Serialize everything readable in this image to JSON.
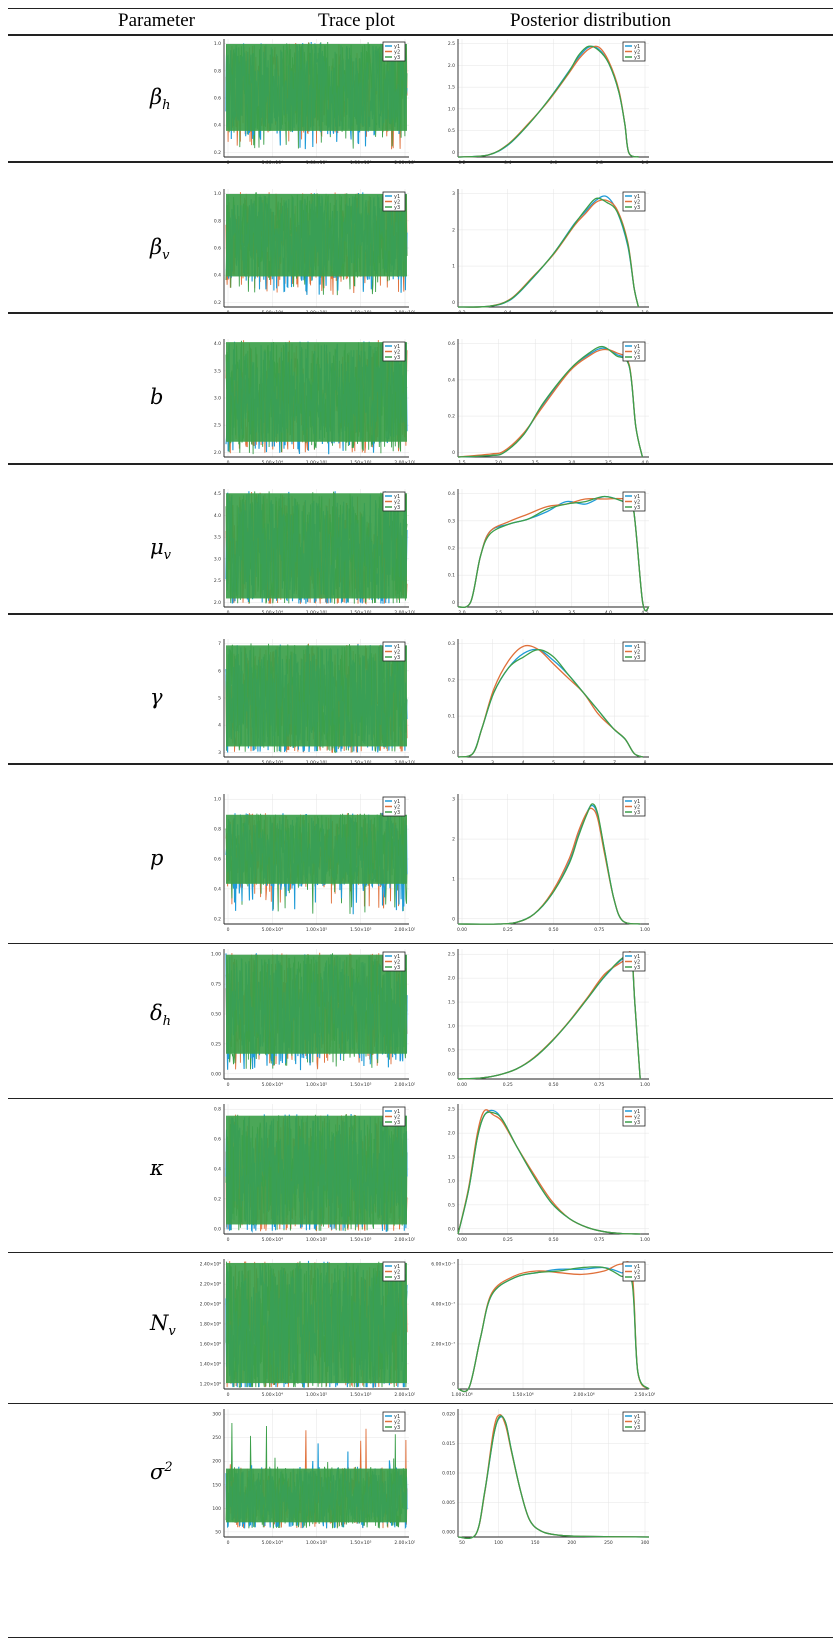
{
  "headers": {
    "parameter": "Parameter",
    "trace": "Trace plot",
    "posterior": "Posterior distribution"
  },
  "legend_labels": [
    "y1",
    "y2",
    "y3"
  ],
  "series_colors": [
    "#1f9bd7",
    "#e0703a",
    "#3c9f4a"
  ],
  "rows": [
    {
      "symbol": "β",
      "sub": "h",
      "sup": "",
      "trace": {
        "y_ticks": [
          "0.2",
          "0.4",
          "0.6",
          "0.8",
          "1.0"
        ],
        "x_ticks": [
          "0",
          "5.00×10⁴",
          "1.00×10⁵",
          "1.50×10⁵",
          "2.00×10⁵"
        ],
        "ylim": [
          0.2,
          1.0
        ],
        "band": [
          0.35,
          0.98
        ],
        "tail": 0.25
      },
      "posterior": {
        "y_ticks": [
          "0",
          "0.5",
          "1.0",
          "1.5",
          "2.0",
          "2.5"
        ],
        "x_ticks": [
          "0.2",
          "0.4",
          "0.6",
          "0.8",
          "1.0"
        ],
        "xlim": [
          0.15,
          1.1
        ],
        "ylim": [
          0,
          2.9
        ],
        "x": [
          0.15,
          0.3,
          0.4,
          0.5,
          0.6,
          0.7,
          0.75,
          0.8,
          0.85,
          0.9,
          0.95,
          0.98,
          1.0,
          1.05
        ],
        "series": [
          [
            0,
            0.05,
            0.3,
            0.8,
            1.4,
            2.1,
            2.45,
            2.7,
            2.65,
            2.3,
            1.6,
            0.8,
            0.1,
            0
          ],
          [
            0,
            0.05,
            0.32,
            0.82,
            1.38,
            2.05,
            2.4,
            2.65,
            2.7,
            2.35,
            1.65,
            0.8,
            0.1,
            0
          ],
          [
            0,
            0.05,
            0.31,
            0.8,
            1.4,
            2.08,
            2.5,
            2.72,
            2.62,
            2.3,
            1.6,
            0.8,
            0.1,
            0
          ]
        ]
      }
    },
    {
      "symbol": "β",
      "sub": "v",
      "sup": "",
      "trace": {
        "y_ticks": [
          "0.2",
          "0.4",
          "0.6",
          "0.8",
          "1.0"
        ],
        "x_ticks": [
          "0",
          "5.00×10⁴",
          "1.00×10⁵",
          "1.50×10⁵",
          "2.00×10⁵"
        ],
        "ylim": [
          0.2,
          1.0
        ],
        "band": [
          0.38,
          0.98
        ],
        "tail": 0.28
      },
      "posterior": {
        "y_ticks": [
          "0",
          "1",
          "2",
          "3"
        ],
        "x_ticks": [
          "0.2",
          "0.4",
          "0.6",
          "0.8",
          "1.0"
        ],
        "xlim": [
          0.15,
          1.05
        ],
        "ylim": [
          0,
          3.1
        ],
        "x": [
          0.15,
          0.3,
          0.4,
          0.5,
          0.6,
          0.7,
          0.75,
          0.8,
          0.85,
          0.9,
          0.95,
          0.98,
          1.0
        ],
        "series": [
          [
            0,
            0.02,
            0.2,
            0.75,
            1.4,
            2.2,
            2.5,
            2.8,
            2.9,
            2.5,
            1.6,
            0.5,
            0
          ],
          [
            0,
            0.02,
            0.22,
            0.78,
            1.38,
            2.15,
            2.45,
            2.75,
            2.8,
            2.55,
            1.7,
            0.5,
            0
          ],
          [
            0,
            0.02,
            0.21,
            0.76,
            1.4,
            2.18,
            2.55,
            2.85,
            2.75,
            2.5,
            1.65,
            0.5,
            0
          ]
        ]
      }
    },
    {
      "symbol": "b",
      "sub": "",
      "sup": "",
      "trace": {
        "y_ticks": [
          "2.0",
          "2.5",
          "3.0",
          "3.5",
          "4.0"
        ],
        "x_ticks": [
          "0",
          "5.00×10⁴",
          "1.00×10⁵",
          "1.50×10⁵",
          "2.00×10⁵"
        ],
        "ylim": [
          1.9,
          4.0
        ],
        "band": [
          2.1,
          3.98
        ],
        "tail": 1.95
      },
      "posterior": {
        "y_ticks": [
          "0",
          "0.2",
          "0.4",
          "0.6"
        ],
        "x_ticks": [
          "1.5",
          "2.0",
          "2.5",
          "3.0",
          "3.5",
          "4.0"
        ],
        "xlim": [
          1.3,
          4.2
        ],
        "ylim": [
          0,
          0.78
        ],
        "x": [
          1.3,
          1.8,
          2.0,
          2.3,
          2.6,
          3.0,
          3.3,
          3.5,
          3.7,
          3.9,
          4.0,
          4.1
        ],
        "series": [
          [
            0,
            0.01,
            0.03,
            0.15,
            0.35,
            0.58,
            0.68,
            0.72,
            0.68,
            0.6,
            0.2,
            0
          ],
          [
            0,
            0.02,
            0.04,
            0.16,
            0.34,
            0.57,
            0.67,
            0.71,
            0.69,
            0.61,
            0.2,
            0
          ],
          [
            0,
            0.01,
            0.03,
            0.15,
            0.36,
            0.58,
            0.69,
            0.73,
            0.67,
            0.6,
            0.2,
            0
          ]
        ]
      }
    },
    {
      "symbol": "μ",
      "sub": "v",
      "sup": "",
      "trace": {
        "y_ticks": [
          "2.0",
          "2.5",
          "3.0",
          "3.5",
          "4.0",
          "4.5"
        ],
        "x_ticks": [
          "0",
          "5.00×10⁴",
          "1.00×10⁵",
          "1.50×10⁵",
          "2.00×10⁵"
        ],
        "ylim": [
          1.95,
          4.55
        ],
        "band": [
          2.05,
          4.5
        ],
        "tail": 2.02
      },
      "posterior": {
        "y_ticks": [
          "0",
          "0.1",
          "0.2",
          "0.3",
          "0.4"
        ],
        "x_ticks": [
          "2.0",
          "2.5",
          "3.0",
          "3.5",
          "4.0",
          "4.5"
        ],
        "xlim": [
          1.7,
          4.7
        ],
        "ylim": [
          0,
          0.47
        ],
        "x": [
          1.7,
          1.9,
          2.05,
          2.2,
          2.5,
          2.8,
          3.1,
          3.4,
          3.7,
          4.0,
          4.3,
          4.45,
          4.6,
          4.7
        ],
        "series": [
          [
            0,
            0.02,
            0.2,
            0.3,
            0.33,
            0.35,
            0.38,
            0.42,
            0.41,
            0.44,
            0.42,
            0.4,
            0.02,
            0
          ],
          [
            0,
            0.02,
            0.2,
            0.3,
            0.34,
            0.37,
            0.4,
            0.41,
            0.43,
            0.43,
            0.43,
            0.4,
            0.02,
            0
          ],
          [
            0,
            0.02,
            0.2,
            0.29,
            0.33,
            0.35,
            0.39,
            0.41,
            0.42,
            0.44,
            0.42,
            0.4,
            0.02,
            0
          ]
        ]
      }
    },
    {
      "symbol": "γ",
      "sub": "",
      "sup": "",
      "trace": {
        "y_ticks": [
          "3",
          "4",
          "5",
          "6",
          "7"
        ],
        "x_ticks": [
          "0",
          "5.00×10⁴",
          "1.00×10⁵",
          "1.50×10⁵",
          "2.00×10⁵"
        ],
        "ylim": [
          2.3,
          7.7
        ],
        "band": [
          2.6,
          7.5
        ],
        "tail": 2.5
      },
      "posterior": {
        "y_ticks": [
          "0",
          "0.1",
          "0.2",
          "0.3"
        ],
        "x_ticks": [
          "2",
          "3",
          "4",
          "5",
          "6",
          "7",
          "8"
        ],
        "xlim": [
          1.8,
          8.2
        ],
        "ylim": [
          0,
          0.33
        ],
        "x": [
          1.8,
          2.3,
          2.6,
          3.0,
          3.5,
          4.0,
          4.5,
          5.0,
          5.5,
          6.0,
          6.5,
          7.0,
          7.4,
          7.7,
          8.0
        ],
        "series": [
          [
            0,
            0.01,
            0.08,
            0.18,
            0.25,
            0.29,
            0.3,
            0.27,
            0.23,
            0.18,
            0.13,
            0.08,
            0.05,
            0.01,
            0
          ],
          [
            0,
            0.01,
            0.08,
            0.19,
            0.27,
            0.31,
            0.3,
            0.26,
            0.22,
            0.18,
            0.12,
            0.08,
            0.05,
            0.01,
            0
          ],
          [
            0,
            0.01,
            0.08,
            0.18,
            0.25,
            0.28,
            0.3,
            0.28,
            0.23,
            0.18,
            0.13,
            0.08,
            0.05,
            0.01,
            0
          ]
        ]
      }
    },
    {
      "symbol": "p",
      "sub": "",
      "sup": "",
      "trace": {
        "y_ticks": [
          "0.2",
          "0.4",
          "0.6",
          "0.8",
          "1.0"
        ],
        "x_ticks": [
          "0",
          "5.00×10⁴",
          "1.00×10⁵",
          "1.50×10⁵",
          "2.00×10⁵"
        ],
        "ylim": [
          0.05,
          1.02
        ],
        "band": [
          0.32,
          0.88
        ],
        "tail": 0.12
      },
      "posterior": {
        "y_ticks": [
          "0",
          "1",
          "2",
          "3"
        ],
        "x_ticks": [
          "0.00",
          "0.25",
          "0.50",
          "0.75",
          "1.00"
        ],
        "xlim": [
          -0.03,
          1.05
        ],
        "ylim": [
          0,
          3.95
        ],
        "x": [
          -0.03,
          0.2,
          0.3,
          0.4,
          0.5,
          0.6,
          0.65,
          0.7,
          0.73,
          0.76,
          0.8,
          0.85,
          0.9,
          1.0
        ],
        "series": [
          [
            0,
            0,
            0.05,
            0.3,
            0.9,
            1.9,
            2.7,
            3.4,
            3.6,
            3.3,
            2.2,
            0.8,
            0.1,
            0
          ],
          [
            0,
            0,
            0.05,
            0.3,
            0.95,
            2.0,
            2.8,
            3.4,
            3.5,
            3.2,
            2.1,
            0.8,
            0.1,
            0
          ],
          [
            0,
            0,
            0.05,
            0.3,
            0.9,
            1.85,
            2.65,
            3.35,
            3.65,
            3.35,
            2.2,
            0.8,
            0.1,
            0
          ]
        ]
      }
    },
    {
      "symbol": "δ",
      "sub": "h",
      "sup": "",
      "trace": {
        "y_ticks": [
          "0.00",
          "0.25",
          "0.50",
          "0.75",
          "1.00"
        ],
        "x_ticks": [
          "0",
          "5.00×10⁴",
          "1.00×10⁵",
          "1.50×10⁵",
          "2.00×10⁵"
        ],
        "ylim": [
          -0.02,
          1.02
        ],
        "band": [
          0.15,
          0.99
        ],
        "tail": 0.05
      },
      "posterior": {
        "y_ticks": [
          "0.0",
          "0.5",
          "1.0",
          "1.5",
          "2.0",
          "2.5"
        ],
        "x_ticks": [
          "0.00",
          "0.25",
          "0.50",
          "0.75",
          "1.00"
        ],
        "xlim": [
          -0.03,
          1.05
        ],
        "ylim": [
          0,
          2.6
        ],
        "x": [
          -0.03,
          0.1,
          0.2,
          0.3,
          0.4,
          0.5,
          0.6,
          0.7,
          0.8,
          0.9,
          0.95,
          0.97,
          1.0
        ],
        "series": [
          [
            0,
            0.02,
            0.08,
            0.2,
            0.42,
            0.75,
            1.15,
            1.6,
            2.05,
            2.4,
            2.45,
            1.5,
            0
          ],
          [
            0,
            0.02,
            0.08,
            0.2,
            0.43,
            0.76,
            1.16,
            1.62,
            2.1,
            2.35,
            2.5,
            1.5,
            0
          ],
          [
            0,
            0.02,
            0.08,
            0.2,
            0.42,
            0.75,
            1.15,
            1.6,
            2.06,
            2.42,
            2.45,
            1.5,
            0
          ]
        ]
      }
    },
    {
      "symbol": "κ",
      "sub": "",
      "sup": "",
      "trace": {
        "y_ticks": [
          "0.0",
          "0.2",
          "0.4",
          "0.6",
          "0.8"
        ],
        "x_ticks": [
          "0",
          "5.00×10⁴",
          "1.00×10⁵",
          "1.50×10⁵",
          "2.00×10⁵"
        ],
        "ylim": [
          -0.02,
          0.92
        ],
        "band": [
          0.02,
          0.85
        ],
        "tail": 0.0
      },
      "posterior": {
        "y_ticks": [
          "0.0",
          "0.5",
          "1.0",
          "1.5",
          "2.0",
          "2.5"
        ],
        "x_ticks": [
          "0.00",
          "0.25",
          "0.50",
          "0.75",
          "1.00"
        ],
        "xlim": [
          -0.03,
          1.05
        ],
        "ylim": [
          0,
          2.95
        ],
        "x": [
          -0.03,
          0.03,
          0.08,
          0.12,
          0.17,
          0.22,
          0.3,
          0.4,
          0.5,
          0.6,
          0.7,
          0.8,
          0.9,
          1.0
        ],
        "series": [
          [
            0,
            1.0,
            2.2,
            2.7,
            2.8,
            2.6,
            2.0,
            1.3,
            0.7,
            0.35,
            0.15,
            0.05,
            0.01,
            0
          ],
          [
            0,
            1.05,
            2.3,
            2.8,
            2.7,
            2.55,
            2.0,
            1.35,
            0.75,
            0.35,
            0.15,
            0.05,
            0.01,
            0
          ],
          [
            0,
            1.0,
            2.2,
            2.7,
            2.75,
            2.6,
            2.0,
            1.3,
            0.7,
            0.35,
            0.15,
            0.05,
            0.01,
            0
          ]
        ]
      }
    },
    {
      "symbol": "N",
      "sub": "v",
      "sup": "",
      "trace": {
        "y_ticks": [
          "1.20×10⁶",
          "1.40×10⁶",
          "1.60×10⁶",
          "1.80×10⁶",
          "2.00×10⁶",
          "2.20×10⁶",
          "2.40×10⁶"
        ],
        "x_ticks": [
          "0",
          "5.00×10⁴",
          "1.00×10⁵",
          "1.50×10⁵",
          "2.00×10⁵"
        ],
        "ylim": [
          1.18,
          2.52
        ],
        "band": [
          1.2,
          2.5
        ],
        "tail": 1.2
      },
      "posterior": {
        "y_ticks": [
          "0",
          "2.00×10⁻⁷",
          "4.00×10⁻⁷",
          "6.00×10⁻⁷"
        ],
        "x_ticks": [
          "1.00×10⁶",
          "1.50×10⁶",
          "2.00×10⁶",
          "2.50×10⁶"
        ],
        "xlim": [
          1.0,
          2.7
        ],
        "ylim": [
          0,
          7.6
        ],
        "x": [
          1.0,
          1.1,
          1.2,
          1.3,
          1.5,
          1.7,
          1.9,
          2.1,
          2.3,
          2.45,
          2.55,
          2.6,
          2.7
        ],
        "series": [
          [
            0,
            0.1,
            3.0,
            5.5,
            6.5,
            6.8,
            7.0,
            7.0,
            7.1,
            6.8,
            6.4,
            1.0,
            0
          ],
          [
            0,
            0.1,
            3.0,
            5.6,
            6.6,
            6.9,
            6.8,
            6.7,
            6.9,
            7.3,
            6.8,
            1.0,
            0
          ],
          [
            0,
            0.1,
            3.0,
            5.5,
            6.5,
            6.8,
            6.9,
            7.1,
            7.1,
            6.6,
            6.2,
            1.0,
            0
          ]
        ]
      }
    },
    {
      "symbol": "σ",
      "sub": "",
      "sup": "2",
      "trace": {
        "y_ticks": [
          "50",
          "100",
          "150",
          "200",
          "250",
          "300"
        ],
        "x_ticks": [
          "0",
          "5.00×10⁴",
          "1.00×10⁵",
          "1.50×10⁵",
          "2.00×10⁵"
        ],
        "ylim": [
          30,
          330
        ],
        "band": [
          55,
          195
        ],
        "tail": 50,
        "spike": 310
      },
      "posterior": {
        "y_ticks": [
          "0.000",
          "0.005",
          "0.010",
          "0.015",
          "0.020"
        ],
        "x_ticks": [
          "50",
          "100",
          "150",
          "200",
          "250",
          "300"
        ],
        "xlim": [
          10,
          330
        ],
        "ylim": [
          0,
          0.0225
        ],
        "x": [
          10,
          40,
          55,
          70,
          80,
          90,
          100,
          115,
          130,
          150,
          180,
          220,
          330
        ],
        "series": [
          [
            0,
            0.0005,
            0.008,
            0.018,
            0.021,
            0.02,
            0.015,
            0.008,
            0.003,
            0.001,
            0.0003,
            0.0001,
            0
          ],
          [
            0,
            0.0005,
            0.008,
            0.019,
            0.0215,
            0.0195,
            0.0148,
            0.008,
            0.003,
            0.001,
            0.0003,
            0.0001,
            0
          ],
          [
            0,
            0.0005,
            0.0082,
            0.018,
            0.0212,
            0.02,
            0.015,
            0.008,
            0.003,
            0.001,
            0.0003,
            0.0001,
            0
          ]
        ]
      }
    }
  ],
  "chart_data": {
    "type": "line",
    "title": "",
    "panels": "trace plots and posterior densities for 10 parameters, 3 chains each (y1, y2, y3)"
  }
}
